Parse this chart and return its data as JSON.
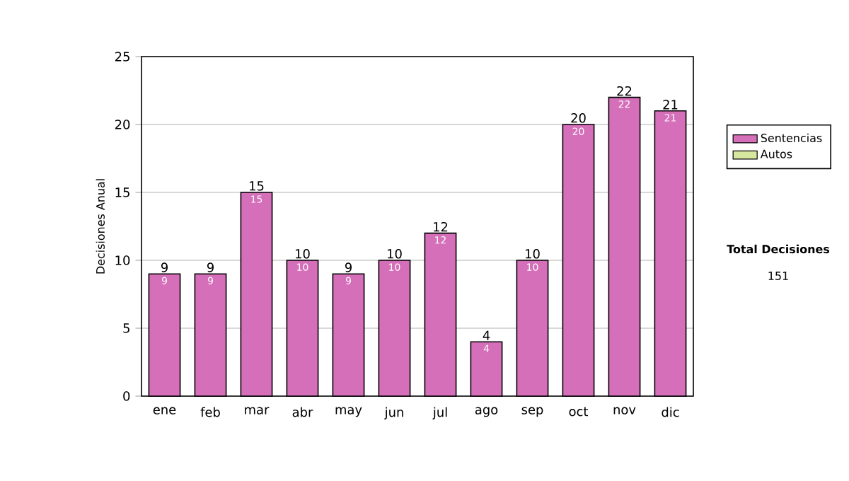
{
  "chart_data": {
    "type": "bar",
    "ylabel": "Decisiones Anual",
    "categories": [
      "ene",
      "feb",
      "mar",
      "abr",
      "may",
      "jun",
      "jul",
      "ago",
      "sep",
      "oct",
      "nov",
      "dic"
    ],
    "series": [
      {
        "name": "Sentencias",
        "color": "#d56fb9",
        "values": [
          9,
          9,
          15,
          10,
          9,
          10,
          12,
          4,
          10,
          20,
          22,
          21
        ],
        "value_labels": [
          "9",
          "9",
          "15",
          "10",
          "9",
          "10",
          "12",
          "4",
          "10",
          "20",
          "22",
          "21"
        ]
      },
      {
        "name": "Autos",
        "color": "#d6e8a0",
        "values": [
          0,
          0,
          0,
          0,
          0,
          0,
          0,
          0,
          0,
          0,
          0,
          0
        ]
      }
    ],
    "stacked": true,
    "totals": [
      "9",
      "9",
      "15",
      "10",
      "9",
      "10",
      "12",
      "4",
      "10",
      "20",
      "22",
      "21"
    ],
    "ylim": [
      0,
      25
    ],
    "yticks": [
      0,
      5,
      10,
      15,
      20,
      25
    ],
    "grid": "y",
    "legend": "right",
    "annotations": [
      "Total Decisiones",
      "151"
    ]
  }
}
